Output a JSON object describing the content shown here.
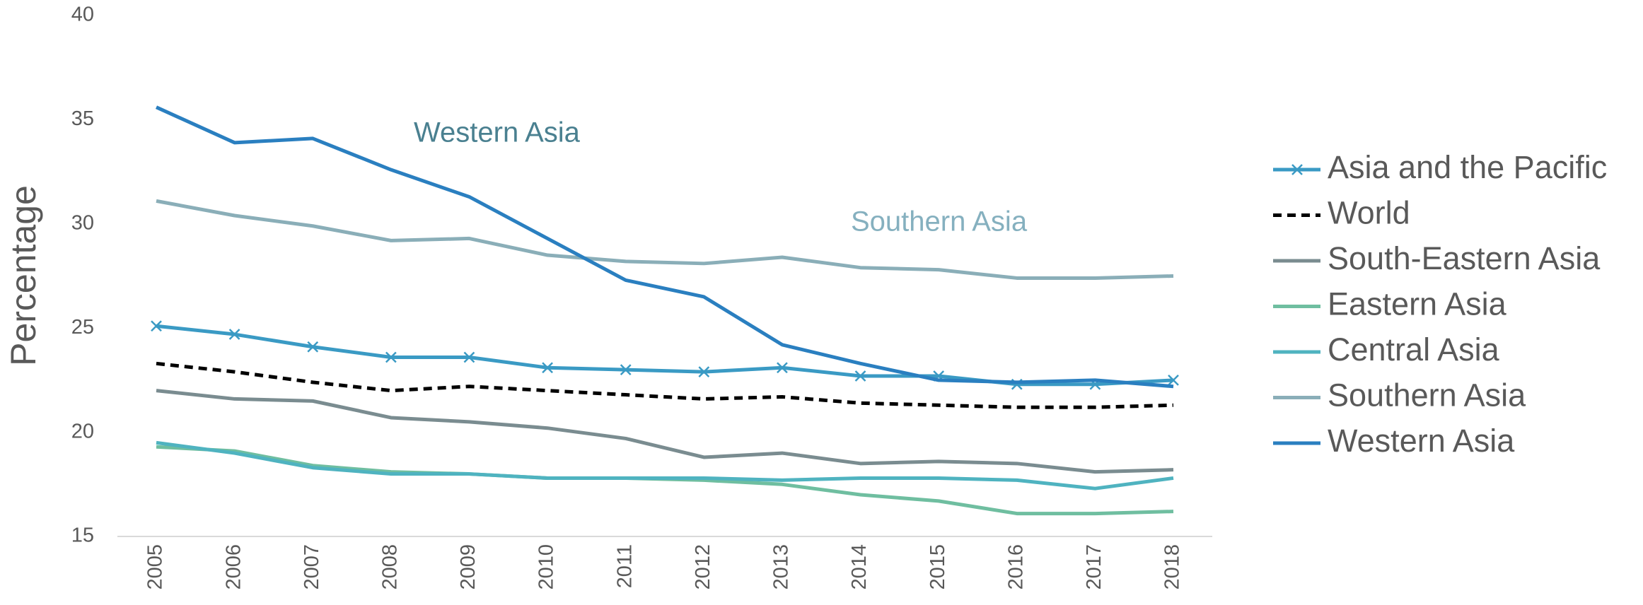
{
  "chart_data": {
    "type": "line",
    "y_label": "Percentage",
    "annotations": [
      "Western Asia",
      "Southern Asia"
    ],
    "categories": [
      "2005",
      "2006",
      "2007",
      "2008",
      "2009",
      "2010",
      "2011",
      "2012",
      "2013",
      "2014",
      "2015",
      "2016",
      "2017",
      "2018"
    ],
    "ylim": [
      15,
      40
    ],
    "yticks": [
      15,
      20,
      25,
      30,
      35,
      40
    ],
    "series": [
      {
        "name": "Asia and the Pacific",
        "color": "#3a9ac4",
        "marker": "x",
        "values": [
          25.1,
          24.7,
          24.1,
          23.6,
          23.6,
          23.1,
          23.0,
          22.9,
          23.1,
          22.7,
          22.7,
          22.3,
          22.3,
          22.5
        ]
      },
      {
        "name": "World",
        "color": "#000000",
        "dashed": true,
        "values": [
          23.3,
          22.9,
          22.4,
          22.0,
          22.2,
          22.0,
          21.8,
          21.6,
          21.7,
          21.4,
          21.3,
          21.2,
          21.2,
          21.3
        ]
      },
      {
        "name": "South-Eastern Asia",
        "color": "#7a8c90",
        "values": [
          22.0,
          21.6,
          21.5,
          20.7,
          20.5,
          20.2,
          19.7,
          18.8,
          19.0,
          18.5,
          18.6,
          18.5,
          18.1,
          18.2
        ]
      },
      {
        "name": "Eastern Asia",
        "color": "#6fbea0",
        "values": [
          19.3,
          19.1,
          18.4,
          18.1,
          18.0,
          17.8,
          17.8,
          17.7,
          17.5,
          17.0,
          16.7,
          16.1,
          16.1,
          16.2
        ]
      },
      {
        "name": "Central Asia",
        "color": "#4fb3c0",
        "values": [
          19.5,
          19.0,
          18.3,
          18.0,
          18.0,
          17.8,
          17.8,
          17.8,
          17.7,
          17.8,
          17.8,
          17.7,
          17.3,
          17.8
        ]
      },
      {
        "name": "Southern Asia",
        "color": "#8aaeb8",
        "values": [
          31.1,
          30.4,
          29.9,
          29.2,
          29.3,
          28.5,
          28.2,
          28.1,
          28.4,
          27.9,
          27.8,
          27.4,
          27.4,
          27.5
        ]
      },
      {
        "name": "Western Asia",
        "color": "#2a7fc0",
        "values": [
          35.6,
          33.9,
          34.1,
          32.6,
          31.3,
          29.3,
          27.3,
          26.5,
          24.2,
          23.3,
          22.5,
          22.4,
          22.5,
          22.2
        ]
      }
    ]
  }
}
